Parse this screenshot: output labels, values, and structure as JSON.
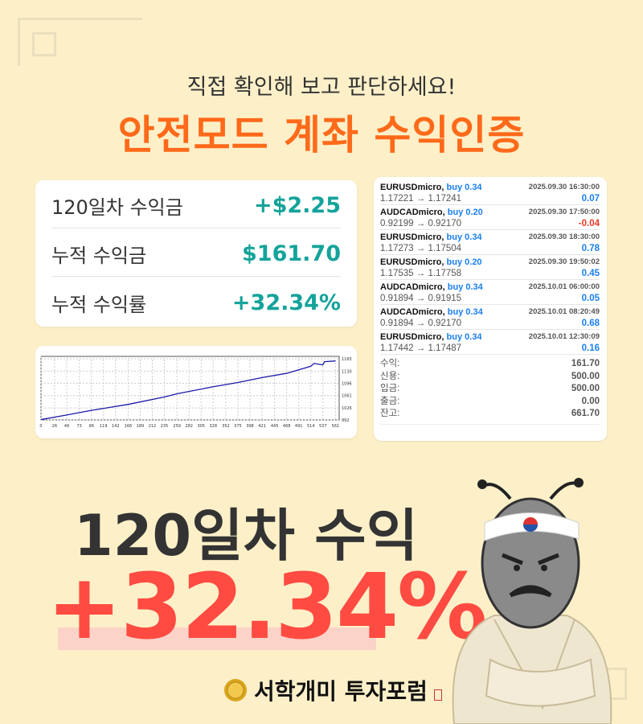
{
  "header": {
    "subtitle": "직접 확인해 보고 판단하세요!",
    "title": "안전모드 계좌 수익인증"
  },
  "stats": [
    {
      "label": "120일차 수익금",
      "value": "+$2.25"
    },
    {
      "label": "누적 수익금",
      "value": "$161.70"
    },
    {
      "label": "누적 수익률",
      "value": "+32.34%"
    }
  ],
  "trades": [
    {
      "symbol": "EURUSDmicro,",
      "side": "buy 0.34",
      "time": "2025.09.30 16:30:00",
      "prices": "1.17221 → 1.17241",
      "profit": "0.07"
    },
    {
      "symbol": "AUDCADmicro,",
      "side": "buy 0.20",
      "time": "2025.09.30 17:50:00",
      "prices": "0.92199 → 0.92170",
      "profit": "-0.04"
    },
    {
      "symbol": "EURUSDmicro,",
      "side": "buy 0.34",
      "time": "2025.09.30 18:30:00",
      "prices": "1.17273 → 1.17504",
      "profit": "0.78"
    },
    {
      "symbol": "EURUSDmicro,",
      "side": "buy 0.20",
      "time": "2025.09.30 19:50:02",
      "prices": "1.17535 → 1.17758",
      "profit": "0.45"
    },
    {
      "symbol": "AUDCADmicro,",
      "side": "buy 0.34",
      "time": "2025.10.01 06:00:00",
      "prices": "0.91894 → 0.91915",
      "profit": "0.05"
    },
    {
      "symbol": "AUDCADmicro,",
      "side": "buy 0.34",
      "time": "2025.10.01 08:20:49",
      "prices": "0.91894 → 0.92170",
      "profit": "0.68"
    },
    {
      "symbol": "EURUSDmicro,",
      "side": "buy 0.34",
      "time": "2025.10.01 12:30:09",
      "prices": "1.17442 → 1.17487",
      "profit": "0.16"
    }
  ],
  "summary": [
    {
      "label": "수익:",
      "value": "161.70"
    },
    {
      "label": "신용:",
      "value": "500.00"
    },
    {
      "label": "입금:",
      "value": "500.00"
    },
    {
      "label": "출금:",
      "value": "0.00"
    },
    {
      "label": "잔고:",
      "value": "661.70"
    }
  ],
  "colors": {
    "background": "#fdf0c9",
    "accent": "#ff6a1a",
    "teal": "#14a39a",
    "buy": "#1a7ff0",
    "loss": "#e83a2a",
    "headline": "#ff4b42"
  },
  "chart_data": {
    "type": "line",
    "x_ticks": [
      0,
      26,
      49,
      73,
      96,
      119,
      142,
      166,
      189,
      212,
      235,
      259,
      282,
      305,
      328,
      352,
      375,
      398,
      421,
      445,
      468,
      491,
      514,
      537,
      561
    ],
    "y_ticks": [
      992,
      1026,
      1061,
      1096,
      1130,
      1165
    ],
    "ylim": [
      992,
      1172
    ],
    "xlim": [
      0,
      568
    ],
    "grid": true,
    "x": [
      0,
      49,
      96,
      166,
      235,
      259,
      328,
      375,
      421,
      468,
      514,
      520,
      537,
      540,
      561
    ],
    "y": [
      993,
      1006,
      1019,
      1036,
      1057,
      1066,
      1086,
      1098,
      1112,
      1124,
      1144,
      1152,
      1148,
      1157,
      1159
    ]
  },
  "headline": {
    "line1": "120일차 수익",
    "line2": "+32.34%"
  },
  "footer": {
    "brand": "서학개미 투자포럼"
  }
}
